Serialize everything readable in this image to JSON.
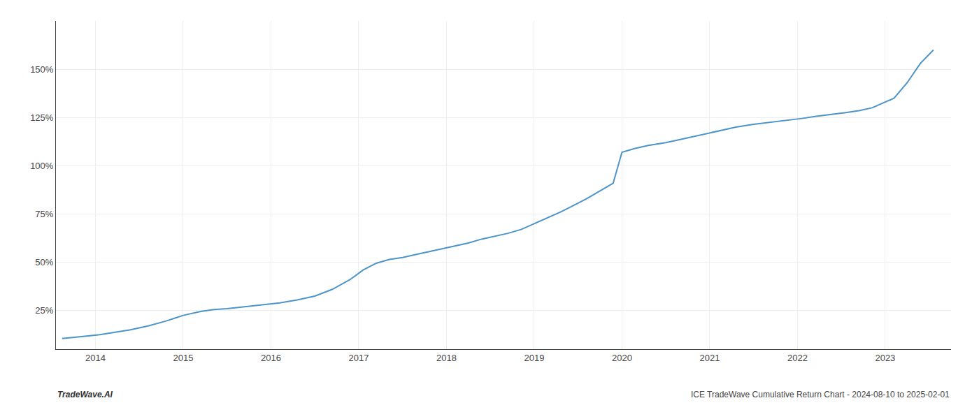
{
  "chart_data": {
    "type": "line",
    "annotations": [
      "TradeWave.AI",
      "ICE TradeWave Cumulative Return Chart - 2024-08-10 to 2025-02-01"
    ],
    "color": "#4d94c8",
    "grid": true,
    "xlim": [
      2013.55,
      2023.75
    ],
    "xticks": [
      2014,
      2015,
      2016,
      2017,
      2018,
      2019,
      2020,
      2021,
      2022,
      2023
    ],
    "ylim": [
      5,
      175
    ],
    "yticks": [
      {
        "value": 25,
        "label": "25%"
      },
      {
        "value": 50,
        "label": "50%"
      },
      {
        "value": 75,
        "label": "75%"
      },
      {
        "value": 100,
        "label": "100%"
      },
      {
        "value": 125,
        "label": "125%"
      },
      {
        "value": 150,
        "label": "150%"
      }
    ],
    "x": [
      2013.62,
      2013.75,
      2013.9,
      2014.05,
      2014.2,
      2014.4,
      2014.6,
      2014.8,
      2015.0,
      2015.2,
      2015.35,
      2015.5,
      2015.7,
      2015.9,
      2016.1,
      2016.3,
      2016.5,
      2016.7,
      2016.9,
      2017.05,
      2017.2,
      2017.35,
      2017.5,
      2017.65,
      2017.8,
      2017.95,
      2018.1,
      2018.25,
      2018.4,
      2018.55,
      2018.7,
      2018.85,
      2019.0,
      2019.15,
      2019.3,
      2019.45,
      2019.6,
      2019.75,
      2019.9,
      2020.0,
      2020.15,
      2020.3,
      2020.5,
      2020.7,
      2020.9,
      2021.1,
      2021.3,
      2021.5,
      2021.7,
      2021.9,
      2022.05,
      2022.2,
      2022.4,
      2022.55,
      2022.7,
      2022.85,
      2022.95,
      2023.1,
      2023.25,
      2023.4,
      2023.55
    ],
    "values": [
      10.5,
      11.0,
      11.8,
      12.5,
      13.5,
      15.0,
      17.0,
      19.5,
      22.5,
      24.5,
      25.5,
      26.0,
      27.0,
      28.0,
      29.0,
      30.5,
      32.5,
      36.0,
      41.0,
      46.0,
      49.5,
      51.5,
      52.5,
      54.0,
      55.5,
      57.0,
      58.5,
      60.0,
      62.0,
      63.5,
      65.0,
      67.0,
      70.0,
      73.0,
      76.0,
      79.5,
      83.0,
      87.0,
      91.0,
      107.0,
      109.0,
      110.5,
      112.0,
      114.0,
      116.0,
      118.0,
      120.0,
      121.5,
      122.5,
      123.5,
      124.5,
      125.5,
      126.5,
      127.5,
      128.5,
      130.0,
      132.0,
      135.0,
      143.0,
      153.0,
      160.0
    ]
  }
}
